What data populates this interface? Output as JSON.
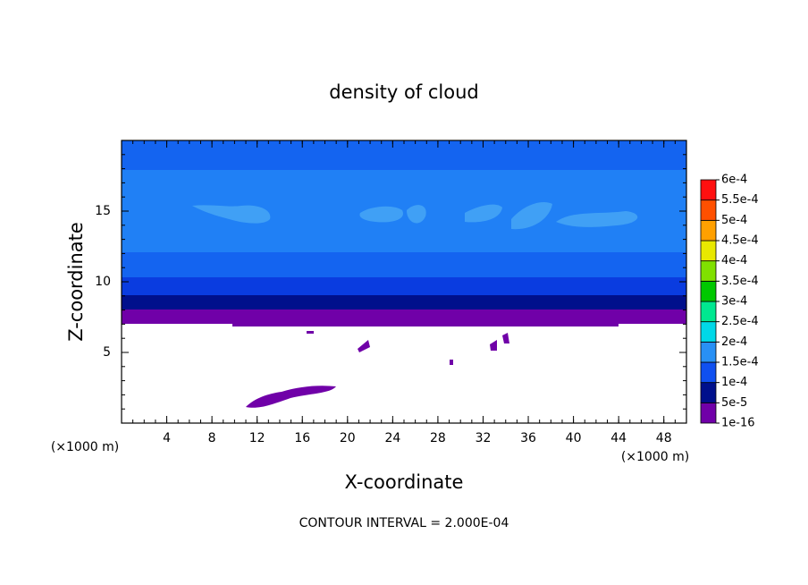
{
  "chart_data": {
    "type": "contour",
    "title": "density of cloud",
    "x_label": "X-coordinate",
    "y_label": "Z-coordinate",
    "x_unit": "(×1000 m)",
    "y_unit": "(×1000 m)",
    "annotation": "CONTOUR INTERVAL = 2.000E-04",
    "xlim": [
      0,
      50
    ],
    "ylim": [
      0,
      20
    ],
    "xticks": [
      4,
      8,
      12,
      16,
      20,
      24,
      28,
      32,
      36,
      40,
      44,
      48
    ],
    "yticks": [
      5,
      10,
      15
    ],
    "colorbar": {
      "levels": [
        {
          "value": 1e-16,
          "label": "1e-16"
        },
        {
          "value": 5e-05,
          "label": "5e-5"
        },
        {
          "value": 0.0001,
          "label": "1e-4"
        },
        {
          "value": 0.00015,
          "label": "1.5e-4"
        },
        {
          "value": 0.0002,
          "label": "2e-4"
        },
        {
          "value": 0.00025,
          "label": "2.5e-4"
        },
        {
          "value": 0.0003,
          "label": "3e-4"
        },
        {
          "value": 0.00035,
          "label": "3.5e-4"
        },
        {
          "value": 0.0004,
          "label": "4e-4"
        },
        {
          "value": 0.00045,
          "label": "4.5e-4"
        },
        {
          "value": 0.0005,
          "label": "5e-4"
        },
        {
          "value": 0.00055,
          "label": "5.5e-4"
        },
        {
          "value": 0.0006,
          "label": "6e-4"
        }
      ],
      "colors": [
        "#7000a8",
        "#00108c",
        "#1050f0",
        "#2890f5",
        "#00d8e8",
        "#00e890",
        "#00c800",
        "#80e000",
        "#e8e800",
        "#ffa000",
        "#ff5000",
        "#ff1010",
        "#f08080"
      ]
    }
  }
}
